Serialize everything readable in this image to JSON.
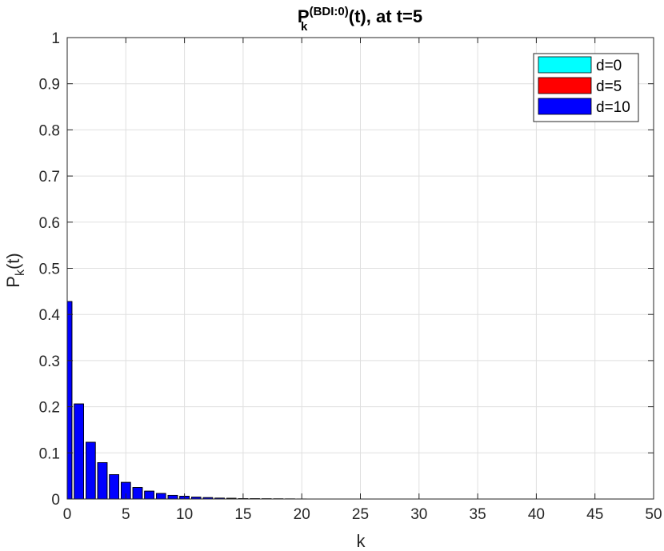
{
  "chart_data": {
    "type": "bar",
    "title": {
      "main": "P",
      "subscript": "k",
      "superscript": "(BDI:0)",
      "suffix": "(t), at t=5"
    },
    "xlabel": "k",
    "ylabel": {
      "main": "P",
      "subscript": "k",
      "suffix": "(t)"
    },
    "xlim": [
      0,
      50
    ],
    "ylim": [
      0,
      1
    ],
    "xticks": [
      "0",
      "5",
      "10",
      "15",
      "20",
      "25",
      "30",
      "35",
      "40",
      "45",
      "50"
    ],
    "yticks": [
      "0",
      "0.1",
      "0.2",
      "0.3",
      "0.4",
      "0.5",
      "0.6",
      "0.7",
      "0.8",
      "0.9",
      "1"
    ],
    "grid": true,
    "legend_position": "top-right",
    "x": [
      0,
      1,
      2,
      3,
      4,
      5,
      6,
      7,
      8,
      9,
      10,
      11,
      12,
      13,
      14,
      15,
      16,
      17,
      18,
      19,
      20,
      21,
      22,
      23,
      24,
      25,
      26,
      27,
      28,
      29,
      30,
      31,
      32,
      33,
      34,
      35,
      36,
      37,
      38,
      39,
      40,
      41,
      42,
      43,
      44,
      45,
      46,
      47,
      48,
      49
    ],
    "series": [
      {
        "name": "d=0",
        "color": "#00ffff",
        "values": [
          0.428,
          0.206,
          0.123,
          0.079,
          0.053,
          0.036,
          0.025,
          0.017,
          0.012,
          0.008,
          0.006,
          0.004,
          0.003,
          0.002,
          0.0015,
          0.001,
          0.0007,
          0.0005,
          0.0004,
          0.0003,
          0.0002,
          0.0001,
          0.0001,
          0.0001,
          0.0001,
          0,
          0,
          0,
          0,
          0,
          0,
          0,
          0,
          0,
          0,
          0,
          0,
          0,
          0,
          0,
          0,
          0,
          0,
          0,
          0,
          0,
          0,
          0,
          0,
          0
        ]
      },
      {
        "name": "d=5",
        "color": "#ff0000",
        "values": [
          0.428,
          0.206,
          0.123,
          0.079,
          0.053,
          0.036,
          0.025,
          0.017,
          0.012,
          0.008,
          0.006,
          0.004,
          0.003,
          0.002,
          0.0015,
          0.001,
          0.0007,
          0.0005,
          0.0004,
          0.0003,
          0.0002,
          0.0001,
          0.0001,
          0.0001,
          0.0001,
          0,
          0,
          0,
          0,
          0,
          0,
          0,
          0,
          0,
          0,
          0,
          0,
          0,
          0,
          0,
          0,
          0,
          0,
          0,
          0,
          0,
          0,
          0,
          0,
          0
        ]
      },
      {
        "name": "d=10",
        "color": "#0000ff",
        "values": [
          0.428,
          0.206,
          0.123,
          0.079,
          0.053,
          0.036,
          0.025,
          0.017,
          0.012,
          0.008,
          0.006,
          0.004,
          0.003,
          0.002,
          0.0015,
          0.001,
          0.0007,
          0.0005,
          0.0004,
          0.0003,
          0.0002,
          0.0001,
          0.0001,
          0.0001,
          0.0001,
          0,
          0,
          0,
          0,
          0,
          0,
          0,
          0,
          0,
          0,
          0,
          0,
          0,
          0,
          0,
          0,
          0,
          0,
          0,
          0,
          0,
          0,
          0,
          0,
          0
        ]
      }
    ]
  }
}
